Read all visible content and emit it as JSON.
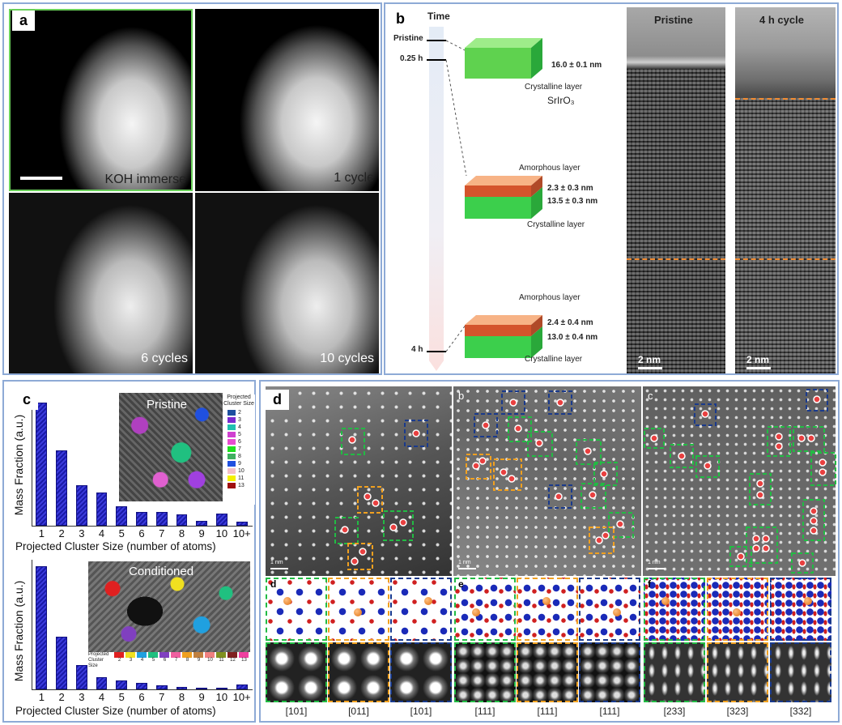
{
  "panel_a": {
    "label": "a",
    "frames": [
      {
        "caption": "KOH immerse"
      },
      {
        "caption": "1 cycle"
      },
      {
        "caption": "6 cycles"
      },
      {
        "caption": "10 cycles"
      }
    ]
  },
  "panel_b": {
    "label": "b",
    "time_title": "Time",
    "time_marks": [
      "Pristine",
      "0.25 h",
      "4 h"
    ],
    "block1": {
      "thickness": "16.0 ± 0.1 nm",
      "layer": "Crystalline layer",
      "formula": "SrIrO₃"
    },
    "block2": {
      "top_layer": "Amorphous layer",
      "t1": "2.3 ± 0.3 nm",
      "t2": "13.5 ± 0.3 nm",
      "bottom_layer": "Crystalline layer"
    },
    "block3": {
      "top_layer": "Amorphous layer",
      "t1": "2.4 ± 0.4 nm",
      "t2": "13.0 ± 0.4 nm",
      "bottom_layer": "Crystalline layer"
    },
    "tem_left": {
      "title": "Pristine",
      "scale": "2 nm"
    },
    "tem_right": {
      "title": "4 h cycle",
      "scale": "2 nm"
    },
    "colors": {
      "crystal": "#22bb44",
      "amorph": "#f2a070",
      "dashed": "#f08a30"
    }
  },
  "panel_c": {
    "label": "c",
    "ylabel": "Mass Fraction (a.u.)",
    "xlabel": "Projected Cluster Size (number of atoms)",
    "inset_top": "Pristine",
    "inset_bottom": "Conditioned",
    "legend_title": "Projected Cluster Size",
    "legend_values": [
      "2",
      "3",
      "4",
      "5",
      "6",
      "7",
      "8",
      "9",
      "10",
      "11",
      "13"
    ],
    "legend_colors": [
      "#1d4fa0",
      "#7a2bd0",
      "#20c0b0",
      "#d040d0",
      "#e84bd0",
      "#20e020",
      "#40b060",
      "#2050e0",
      "#f4c0c8",
      "#f4f000",
      "#a01010"
    ],
    "bottom_legend_title": "Projected Cluster Size",
    "bottom_legend_values": [
      "2",
      "3",
      "4",
      "5",
      "6",
      "7",
      "8",
      "9",
      "10",
      "11",
      "12",
      "13"
    ],
    "bottom_legend_colors": [
      "#e02020",
      "#f0e020",
      "#20a0e0",
      "#20c080",
      "#8040c0",
      "#f060a0",
      "#f0a020",
      "#c08040",
      "#f08080",
      "#809020",
      "#802020",
      "#f040a0"
    ]
  },
  "chart_data": [
    {
      "type": "bar",
      "title": "Pristine",
      "categories": [
        "1",
        "2",
        "3",
        "4",
        "5",
        "6",
        "7",
        "8",
        "9",
        "10",
        "10+"
      ],
      "values": [
        1.0,
        0.61,
        0.33,
        0.27,
        0.16,
        0.11,
        0.11,
        0.09,
        0.04,
        0.1,
        0.03
      ],
      "xlabel": "Projected Cluster Size (number of atoms)",
      "ylabel": "Mass Fraction (a.u.)"
    },
    {
      "type": "bar",
      "title": "Conditioned",
      "categories": [
        "1",
        "2",
        "3",
        "4",
        "5",
        "6",
        "7",
        "8",
        "9",
        "10",
        "10+"
      ],
      "values": [
        1.0,
        0.43,
        0.2,
        0.1,
        0.07,
        0.05,
        0.03,
        0.02,
        0.01,
        0.01,
        0.04
      ],
      "xlabel": "Projected Cluster Size (number of atoms)",
      "ylabel": "Mass Fraction (a.u.)"
    }
  ],
  "panel_d": {
    "label": "d",
    "sub_labels": [
      "b",
      "c"
    ],
    "scale": "1 nm",
    "row_labels": [
      "d",
      "e",
      "f"
    ],
    "zone_axes": [
      "[101]",
      "[011]",
      "[101]",
      "[111]",
      "[111]",
      "[111]",
      "[233]",
      "[323]",
      "[332]"
    ],
    "colors": {
      "green": "#22bb44",
      "orange": "#f0a020",
      "navy": "#1a3a8c"
    }
  }
}
